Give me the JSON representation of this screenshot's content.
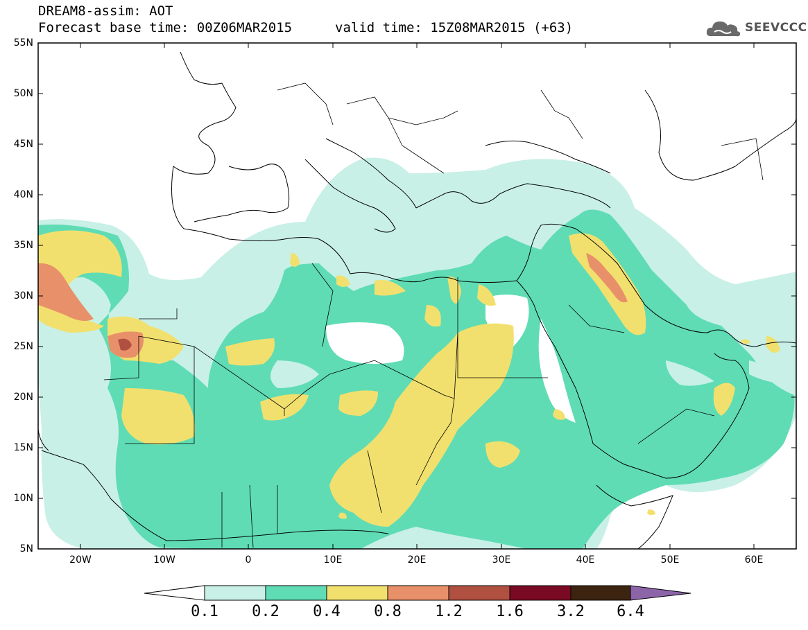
{
  "header": {
    "line1": "DREAM8-assim: AOT",
    "line2": "Forecast base time: 00Z06MAR2015",
    "valid": "valid time: 15Z08MAR2015 (+63)"
  },
  "logo": {
    "text": "SEEVCCC",
    "icon": "cloud-logo-icon"
  },
  "map": {
    "lon_range": [
      -25,
      65
    ],
    "lat_range": [
      5,
      55
    ],
    "lat_labels": [
      "55N",
      "50N",
      "45N",
      "40N",
      "35N",
      "30N",
      "25N",
      "20N",
      "15N",
      "10N",
      "5N"
    ],
    "lon_labels": [
      "20W",
      "10W",
      "0",
      "10E",
      "20E",
      "30E",
      "40E",
      "50E",
      "60E"
    ]
  },
  "legend": {
    "colors": [
      "#c8f0e6",
      "#5fdcb4",
      "#f2e06e",
      "#e8906a",
      "#b05040",
      "#7a0a24",
      "#3c2410",
      "#8c64a8"
    ],
    "labels": [
      "0.1",
      "0.2",
      "0.4",
      "0.8",
      "1.2",
      "1.6",
      "3.2",
      "6.4"
    ]
  }
}
